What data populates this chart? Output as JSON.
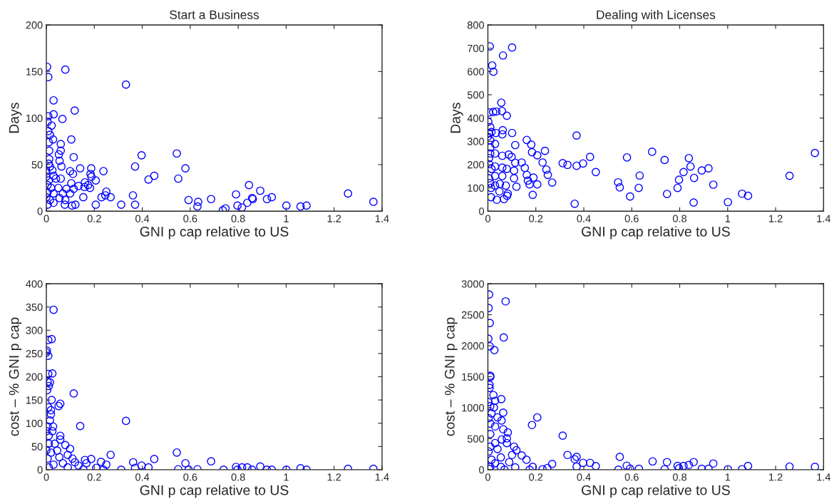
{
  "chart_data": [
    {
      "type": "scatter",
      "title": "Start a Business",
      "xlabel": "GNI p cap relative to US",
      "ylabel": "Days",
      "marker": "circle",
      "xlim": [
        0,
        1.4
      ],
      "ylim": [
        0,
        200
      ],
      "xticks": [
        0,
        0.2,
        0.4,
        0.6,
        0.8,
        1,
        1.2,
        1.4
      ],
      "yticks": [
        0,
        50,
        100,
        150,
        200
      ],
      "series": [
        {
          "color": "#0000ff",
          "x": [
            0.003,
            0.079,
            0.008,
            0.332,
            0.03,
            0.118,
            0.03,
            0.008,
            0.067,
            0.005,
            0.022,
            0.008,
            0.015,
            0.104,
            0.028,
            0.01,
            0.06,
            0.012,
            0.06,
            0.052,
            0.114,
            0.397,
            0.544,
            0.055,
            0.012,
            0.37,
            0.58,
            0,
            0.063,
            0.099,
            0.141,
            0.187,
            0.238,
            0.184,
            0.111,
            0.188,
            0.206,
            0.426,
            0.45,
            0.55,
            0.03,
            0.04,
            0.01,
            0.06,
            0.104,
            0.134,
            0.161,
            0.174,
            0.182,
            0.159,
            0.02,
            0.05,
            0.084,
            0.114,
            0.005,
            0.03,
            0.069,
            0.099,
            0.25,
            0.246,
            0.23,
            0.268,
            0.154,
            0.361,
            0.845,
            0.892,
            0.791,
            0.858,
            0.861,
            0.838,
            0.92,
            0.94,
            1.258,
            1.364,
            1.001,
            1.06,
            1.085,
            0.593,
            0.633,
            0.63,
            0.687,
            0.736,
            0.747,
            0.797,
            0.816,
            0.206,
            0.312,
            0.37,
            0.107,
            0.121,
            0.077,
            0.03,
            0.005,
            0,
            0.015,
            0.055,
            0.079,
            0.005,
            0.015,
            0.025,
            0,
            0.01
          ],
          "values": [
            155,
            152,
            144,
            136,
            119,
            108,
            104,
            102,
            99,
            96,
            92,
            86,
            82,
            77,
            77,
            74,
            72,
            65,
            65,
            61,
            58,
            60,
            62,
            54,
            56,
            48,
            46,
            43,
            48,
            43,
            46,
            46,
            43,
            40,
            40,
            37,
            33,
            34,
            38,
            35,
            38,
            35,
            33,
            35,
            30,
            27,
            31,
            28,
            25,
            26,
            25,
            25,
            24,
            24,
            20,
            19,
            19,
            19,
            21,
            17,
            15,
            15,
            15,
            17,
            28,
            22,
            18,
            14,
            13,
            9,
            13,
            15,
            19,
            10,
            6,
            5,
            6,
            12,
            10,
            5,
            13,
            1,
            3,
            6,
            4,
            7,
            7,
            7,
            6,
            7,
            7,
            9,
            7,
            15,
            12,
            14,
            12,
            28,
            48,
            44,
            37,
            51
          ]
        }
      ]
    },
    {
      "type": "scatter",
      "title": "Dealing with Licenses",
      "xlabel": "GNI p cap relative to US",
      "ylabel": "Days",
      "marker": "circle",
      "xlim": [
        0,
        1.4
      ],
      "ylim": [
        0,
        800
      ],
      "xticks": [
        0,
        0.2,
        0.4,
        0.6,
        0.8,
        1,
        1.2,
        1.4
      ],
      "yticks": [
        0,
        100,
        200,
        300,
        400,
        500,
        600,
        700,
        800
      ],
      "series": [
        {
          "color": "#0000ff",
          "x": [
            0.008,
            0.101,
            0.063,
            0.018,
            0.023,
            0.056,
            0.005,
            0.022,
            0.035,
            0.059,
            0.079,
            0.002,
            0.01,
            0.015,
            0.005,
            0.033,
            0.062,
            0.06,
            0.101,
            0,
            0.37,
            0.01,
            0.162,
            0.181,
            0.114,
            0.03,
            0.184,
            0.206,
            0.238,
            0.685,
            1.364,
            0.01,
            0.01,
            0.03,
            0.005,
            0.06,
            0.087,
            0.099,
            0.426,
            0.58,
            0.737,
            0.838,
            0.141,
            0.114,
            0.228,
            0.312,
            0.332,
            0.37,
            0.397,
            0.845,
            0.154,
            0.92,
            0.892,
            0.244,
            0.25,
            0.816,
            0.45,
            0.109,
            0.06,
            0.03,
            0.005,
            0.015,
            0.079,
            0.162,
            0.633,
            1.258,
            0.19,
            0.109,
            0.06,
            0.03,
            0.005,
            0.797,
            0.86,
            0.167,
            0.174,
            0.206,
            0.268,
            0.119,
            0.075,
            0.05,
            0.01,
            0.03,
            0.94,
            0.543,
            0.55,
            0.629,
            0.791,
            0.013,
            0.048,
            0.083,
            0.08,
            0.187,
            0.747,
            1.06,
            1.085,
            0.593,
            0.013,
            0.037,
            0.067,
            0.362,
            0.858,
            1.001
          ],
          "values": [
            708,
            703,
            669,
            626,
            599,
            466,
            424,
            426,
            428,
            430,
            410,
            384,
            361,
            340,
            335,
            336,
            348,
            330,
            336,
            320,
            325,
            304,
            306,
            286,
            284,
            289,
            253,
            240,
            259,
            255,
            250,
            274,
            248,
            248,
            228,
            238,
            243,
            233,
            233,
            231,
            220,
            228,
            209,
            208,
            209,
            206,
            199,
            195,
            205,
            192,
            186,
            184,
            175,
            179,
            156,
            168,
            168,
            174,
            187,
            192,
            202,
            182,
            182,
            156,
            153,
            152,
            144,
            141,
            151,
            151,
            141,
            135,
            143,
            131,
            115,
            115,
            123,
            105,
            110,
            117,
            121,
            110,
            114,
            124,
            102,
            100,
            100,
            100,
            85,
            75,
            66,
            70,
            74,
            75,
            66,
            63,
            60,
            49,
            52,
            32,
            37,
            39
          ]
        }
      ]
    },
    {
      "type": "scatter",
      "xlabel": "GNI p cap relative to US",
      "ylabel": "cost – % GNI p cap",
      "marker": "circle",
      "xlim": [
        0,
        1.4
      ],
      "ylim": [
        0,
        400
      ],
      "xticks": [
        0,
        0.2,
        0.4,
        0.6,
        0.8,
        1,
        1.2,
        1.4
      ],
      "yticks": [
        0,
        50,
        100,
        150,
        200,
        250,
        300,
        350,
        400
      ],
      "series": [
        {
          "color": "#0000ff",
          "x": [
            0.03,
            0.008,
            0.022,
            0.002,
            0,
            0.008,
            0.008,
            0.025,
            0.005,
            0.015,
            0.01,
            0.003,
            0.114,
            0.022,
            0.058,
            0.051,
            0.008,
            0.019,
            0.019,
            0.015,
            0.332,
            0.141,
            0.005,
            0.028,
            0,
            0.025,
            0.01,
            0.058,
            0.058,
            0.035,
            0.01,
            0.079,
            0.099,
            0,
            0.045,
            0.02,
            0.544,
            0.268,
            0.089,
            0.109,
            0.054,
            0.005,
            0.161,
            0.187,
            0.45,
            0.687,
            0.228,
            0.362,
            0.58,
            0.25,
            0.167,
            0.119,
            0.069,
            0.03,
            0.134,
            0.397,
            0.892,
            0.791,
            0.816,
            0.838,
            1.06,
            1.258,
            1.364,
            0.208,
            0.37,
            0.426,
            0.01,
            0.089,
            0.312,
            0.55,
            0.593,
            0.63,
            0.739,
            0.797,
            0.858,
            0.92,
            0.94,
            1.001,
            1.085,
            0.238,
            0.154
          ],
          "values": [
            344,
            279,
            281,
            256,
            252,
            245,
            206,
            207,
            189,
            188,
            180,
            171,
            164,
            150,
            142,
            137,
            134,
            128,
            119,
            106,
            105,
            94,
            93,
            93,
            83,
            83,
            73,
            73,
            65,
            56,
            56,
            53,
            45,
            42,
            41,
            37,
            37,
            32,
            32,
            24,
            27,
            24,
            21,
            23,
            23,
            18,
            17,
            16,
            14,
            11,
            14,
            16,
            14,
            11,
            9,
            9,
            7,
            6,
            5,
            5,
            3,
            2,
            2,
            4,
            4,
            5,
            5,
            5,
            0,
            1,
            0,
            1,
            0,
            0,
            0,
            0,
            0,
            0,
            0,
            0,
            1
          ]
        }
      ]
    },
    {
      "type": "scatter",
      "xlabel": "GNI p cap relative to US",
      "ylabel": "cost – % GNI p cap",
      "marker": "circle",
      "xlim": [
        0,
        1.4
      ],
      "ylim": [
        0,
        3000
      ],
      "xticks": [
        0,
        0.2,
        0.4,
        0.6,
        0.8,
        1,
        1.2,
        1.4
      ],
      "yticks": [
        0,
        500,
        1000,
        1500,
        2000,
        2500,
        3000
      ],
      "series": [
        {
          "color": "#0000ff",
          "x": [
            0.005,
            0.074,
            0.003,
            0.008,
            0.066,
            0.002,
            0.008,
            0.027,
            0.01,
            0.01,
            0.007,
            0.007,
            0.023,
            0.056,
            0.002,
            0.03,
            0.01,
            0.025,
            0.064,
            0.206,
            0.184,
            0.015,
            0.003,
            0.04,
            0.057,
            0.01,
            0.03,
            0.064,
            0.01,
            0.083,
            0.312,
            0.058,
            0.079,
            0.03,
            0.079,
            0.01,
            0.109,
            0.119,
            0.04,
            0.003,
            0.101,
            0.141,
            0.332,
            0.37,
            0.55,
            0.054,
            0.362,
            0.015,
            0.161,
            0.687,
            0.747,
            0.94,
            0.858,
            0.397,
            0.426,
            0.268,
            0.089,
            0.03,
            0.838,
            0.816,
            0.791,
            1.085,
            0.579,
            0.45,
            0.37,
            1.258,
            1.364,
            0.187,
            0.114,
            0.054,
            0.01,
            0.248,
            0.228,
            0.174,
            0.069,
            0.544,
            0.593,
            0.63,
            0.737,
            0.797,
            0.892,
            0.92,
            1.001,
            1.06,
            0.005
          ],
          "values": [
            2827,
            2716,
            2608,
            2367,
            2133,
            2114,
            1991,
            1929,
            1515,
            1496,
            1369,
            1320,
            1204,
            1139,
            1093,
            1112,
            1024,
            1005,
            921,
            844,
            721,
            909,
            832,
            844,
            794,
            744,
            698,
            652,
            575,
            602,
            549,
            487,
            506,
            430,
            430,
            372,
            372,
            315,
            334,
            295,
            238,
            230,
            238,
            207,
            207,
            199,
            169,
            161,
            161,
            134,
            123,
            100,
            123,
            111,
            111,
            92,
            123,
            104,
            77,
            61,
            61,
            61,
            65,
            58,
            50,
            50,
            46,
            46,
            38,
            46,
            46,
            27,
            8,
            0,
            0,
            0,
            19,
            15,
            8,
            23,
            15,
            15,
            8,
            8,
            15
          ]
        }
      ]
    }
  ]
}
